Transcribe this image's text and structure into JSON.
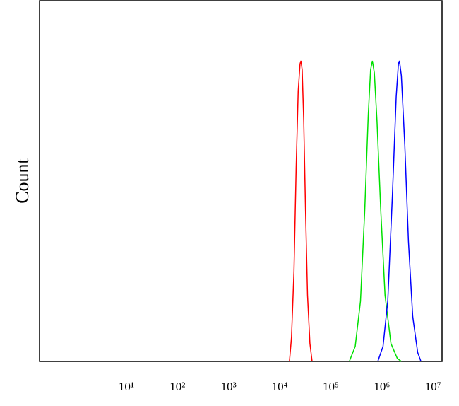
{
  "chart_data": {
    "type": "line",
    "y_label": "Count",
    "xscale": "log",
    "grid": false,
    "xlim": [
      0.2,
      15000000
    ],
    "ylim": [
      0,
      120
    ],
    "xticks": [
      {
        "value": 10,
        "label": "10¹"
      },
      {
        "value": 100,
        "label": "10²"
      },
      {
        "value": 1000,
        "label": "10³"
      },
      {
        "value": 10000,
        "label": "10⁴"
      },
      {
        "value": 100000,
        "label": "10⁵"
      },
      {
        "value": 1000000,
        "label": "10⁶"
      },
      {
        "value": 10000000,
        "label": "10⁷"
      }
    ],
    "series": [
      {
        "color": "#ff0000",
        "x": [
          15500,
          17000,
          19000,
          21000,
          23000,
          25000,
          26000,
          27500,
          29500,
          32000,
          35000,
          39000,
          43000
        ],
        "values": [
          0,
          8,
          30,
          65,
          90,
          99,
          100,
          97,
          80,
          50,
          22,
          6,
          0
        ]
      },
      {
        "color": "#00e000",
        "x": [
          230000,
          300000,
          380000,
          460000,
          540000,
          600000,
          650000,
          710000,
          800000,
          950000,
          1150000,
          1500000,
          2000000,
          2400000
        ],
        "values": [
          0,
          5,
          20,
          50,
          82,
          97,
          100,
          96,
          80,
          50,
          22,
          6,
          1,
          0
        ]
      },
      {
        "color": "#0000ff",
        "x": [
          830000,
          1050000,
          1300000,
          1600000,
          1900000,
          2100000,
          2200000,
          2400000,
          2800000,
          3300000,
          4000000,
          5000000,
          5800000
        ],
        "values": [
          0,
          5,
          20,
          55,
          88,
          99,
          100,
          95,
          72,
          40,
          15,
          3,
          0
        ]
      }
    ]
  }
}
